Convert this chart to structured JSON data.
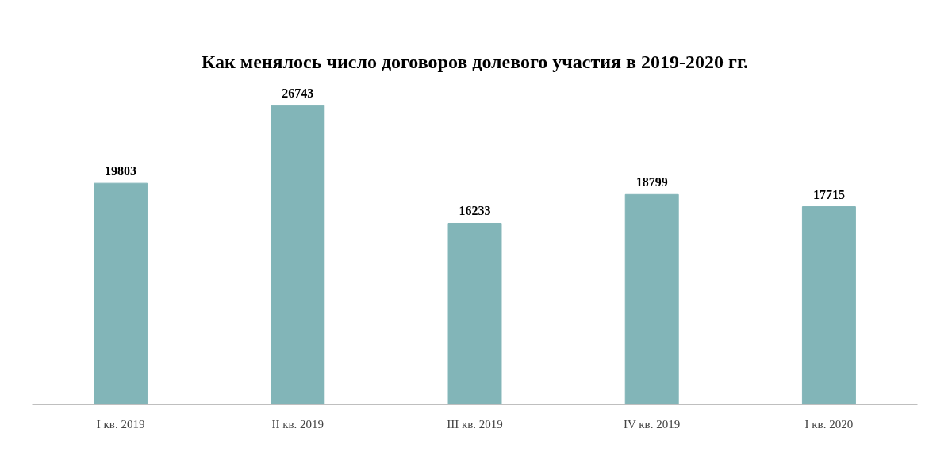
{
  "chart_data": {
    "type": "bar",
    "title": "Как менялось число договоров долевого участия в 2019-2020 гг.",
    "categories": [
      "I кв. 2019",
      "II кв. 2019",
      "III кв. 2019",
      "IV кв. 2019",
      "I кв. 2020"
    ],
    "values": [
      19803,
      26743,
      16233,
      18799,
      17715
    ],
    "color": "#82b5b8",
    "data_labels": true
  }
}
